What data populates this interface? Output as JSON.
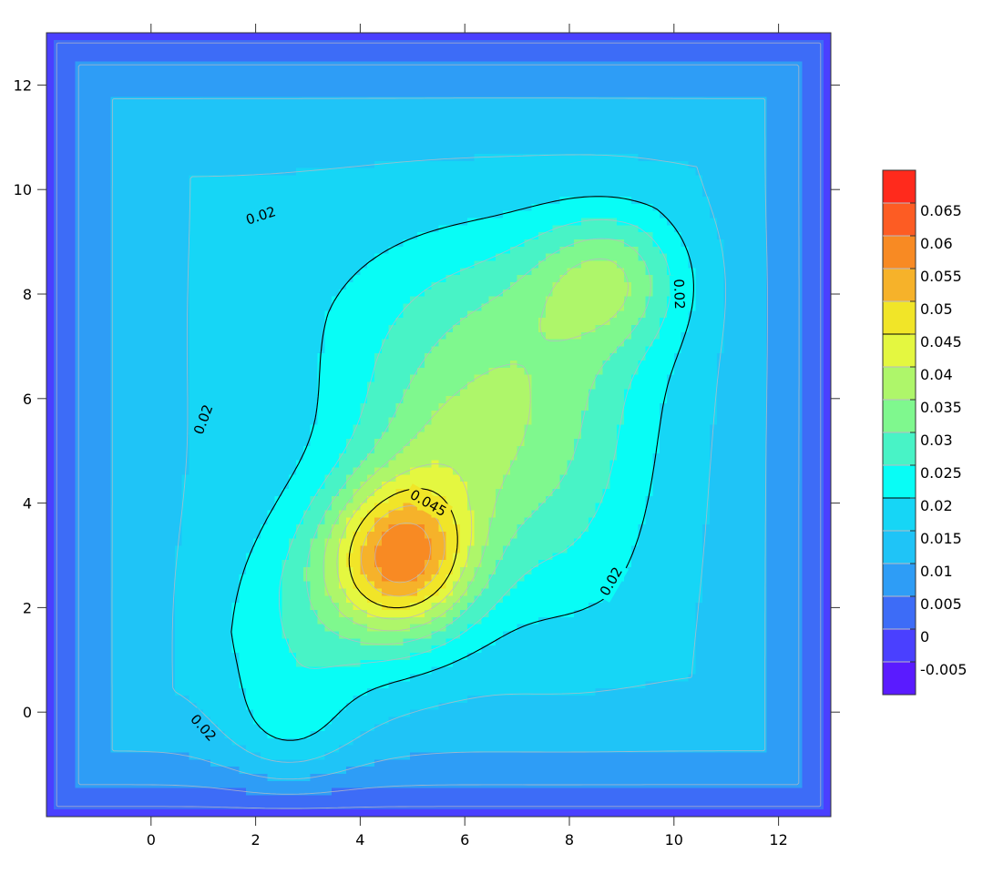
{
  "chart_data": {
    "type": "contour",
    "title": "",
    "xlabel": "",
    "ylabel": "",
    "xlim": [
      -2,
      13
    ],
    "ylim": [
      -2,
      13
    ],
    "xticks": [
      0,
      2,
      4,
      6,
      8,
      10,
      12
    ],
    "yticks": [
      0,
      2,
      4,
      6,
      8,
      10,
      12
    ],
    "grid": false,
    "colorbar_position": "right",
    "colorbar": {
      "levels": [
        -0.005,
        0,
        0.005,
        0.01,
        0.015,
        0.02,
        0.025,
        0.03,
        0.035,
        0.04,
        0.045,
        0.05,
        0.055,
        0.06,
        0.065
      ],
      "labels": [
        "-0.005",
        "0",
        "0.005",
        "0.01",
        "0.015",
        "0.02",
        "0.025",
        "0.03",
        "0.035",
        "0.04",
        "0.045",
        "0.05",
        "0.055",
        "0.06",
        "0.065"
      ],
      "colors": [
        "#5a1bff",
        "#4a40ff",
        "#3d6cf7",
        "#2e9df6",
        "#1fc4f7",
        "#16d6f6",
        "#08fdf6",
        "#48f3c6",
        "#7ff88e",
        "#aef66a",
        "#e4f740",
        "#f1e528",
        "#f6b22a",
        "#f88a23",
        "#fd5c23",
        "#ff2a1c"
      ],
      "highlighted_lines": [
        "0.02",
        "0.045"
      ]
    },
    "peaks": [
      {
        "x": 4.8,
        "y": 2.9,
        "value": 0.065
      },
      {
        "x": 8.8,
        "y": 8.3,
        "value": 0.035
      }
    ],
    "contour_labels": [
      {
        "text": "0.02",
        "x": 2.1,
        "y": 9.5,
        "angle": -18
      },
      {
        "text": "0.02",
        "x": 10.1,
        "y": 8.0,
        "angle": 88
      },
      {
        "text": "0.02",
        "x": 1.0,
        "y": 5.6,
        "angle": -70
      },
      {
        "text": "0.02",
        "x": 8.8,
        "y": 2.5,
        "angle": -60
      },
      {
        "text": "0.02",
        "x": 1.0,
        "y": -0.3,
        "angle": 48
      },
      {
        "text": "0.045",
        "x": 5.3,
        "y": 4.0,
        "angle": 30
      }
    ]
  }
}
